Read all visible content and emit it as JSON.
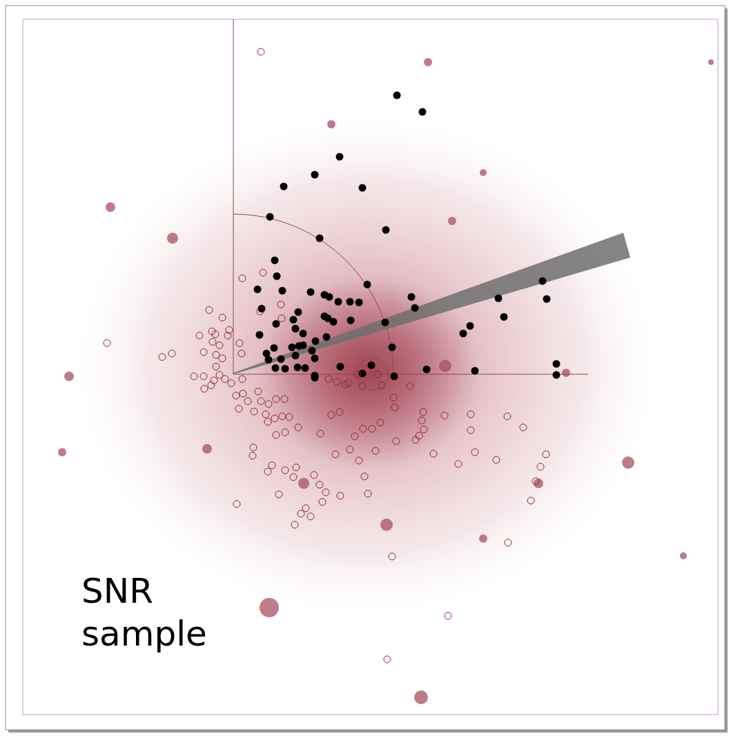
{
  "chart_data": {
    "type": "scatter",
    "title": "SNR sample",
    "xlim": [
      0,
      1059
    ],
    "ylim": [
      0,
      1066
    ],
    "tick_labels": false,
    "grid": false,
    "series": [
      {
        "color": "#000000",
        "marker": "filled",
        "values": [
          [
            575,
            928
          ],
          [
            612,
            904
          ],
          [
            492,
            839
          ],
          [
            456,
            813
          ],
          [
            411,
            796
          ],
          [
            525,
            794
          ],
          [
            391,
            752
          ],
          [
            463,
            721
          ],
          [
            559,
            733
          ],
          [
            398,
            689
          ],
          [
            401,
            666
          ],
          [
            532,
            654
          ],
          [
            373,
            647
          ],
          [
            409,
            645
          ],
          [
            450,
            643
          ],
          [
            470,
            639
          ],
          [
            477,
            636
          ],
          [
            490,
            629
          ],
          [
            507,
            629
          ],
          [
            520,
            628
          ],
          [
            596,
            636
          ],
          [
            601,
            620
          ],
          [
            722,
            634
          ],
          [
            786,
            659
          ],
          [
            792,
            633
          ],
          [
            730,
            607
          ],
          [
            681,
            594
          ],
          [
            671,
            583
          ],
          [
            558,
            599
          ],
          [
            379,
            619
          ],
          [
            400,
            597
          ],
          [
            425,
            603
          ],
          [
            432,
            614
          ],
          [
            428,
            590
          ],
          [
            470,
            608
          ],
          [
            475,
            605
          ],
          [
            483,
            600
          ],
          [
            508,
            602
          ],
          [
            439,
            583
          ],
          [
            457,
            572
          ],
          [
            473,
            578
          ],
          [
            376,
            581
          ],
          [
            397,
            562
          ],
          [
            386,
            554
          ],
          [
            423,
            563
          ],
          [
            433,
            565
          ],
          [
            439,
            566
          ],
          [
            456,
            547
          ],
          [
            407,
            546
          ],
          [
            428,
            551
          ],
          [
            413,
            532
          ],
          [
            442,
            533
          ],
          [
            399,
            533
          ],
          [
            431,
            534
          ],
          [
            456,
            522
          ],
          [
            456,
            519
          ],
          [
            493,
            535
          ],
          [
            568,
            563
          ],
          [
            538,
            537
          ],
          [
            525,
            525
          ],
          [
            571,
            521
          ],
          [
            618,
            531
          ],
          [
            688,
            529
          ],
          [
            806,
            539
          ],
          [
            806,
            523
          ],
          [
            389,
            545
          ],
          [
            452,
            558
          ]
        ]
      },
      {
        "color": "#8b2a2a",
        "marker": "open",
        "values": [
          [
            378,
            991
          ],
          [
            155,
            569
          ],
          [
            235,
            549
          ],
          [
            249,
            554
          ],
          [
            281,
            521
          ],
          [
            295,
            521
          ],
          [
            296,
            503
          ],
          [
            303,
            617
          ],
          [
            289,
            580
          ],
          [
            295,
            556
          ],
          [
            307,
            586
          ],
          [
            308,
            571
          ],
          [
            312,
            582
          ],
          [
            318,
            566
          ],
          [
            313,
            552
          ],
          [
            322,
            547
          ],
          [
            332,
            588
          ],
          [
            322,
            606
          ],
          [
            306,
            508
          ],
          [
            310,
            515
          ],
          [
            318,
            523
          ],
          [
            326,
            517
          ],
          [
            335,
            511
          ],
          [
            313,
            535
          ],
          [
            351,
            663
          ],
          [
            381,
            671
          ],
          [
            407,
            625
          ],
          [
            408,
            605
          ],
          [
            377,
            615
          ],
          [
            330,
            580
          ],
          [
            347,
            569
          ],
          [
            350,
            554
          ],
          [
            351,
            517
          ],
          [
            342,
            493
          ],
          [
            352,
            496
          ],
          [
            359,
            485
          ],
          [
            374,
            499
          ],
          [
            378,
            485
          ],
          [
            389,
            481
          ],
          [
            400,
            488
          ],
          [
            412,
            488
          ],
          [
            368,
            470
          ],
          [
            385,
            466
          ],
          [
            388,
            455
          ],
          [
            398,
            460
          ],
          [
            409,
            463
          ],
          [
            419,
            462
          ],
          [
            432,
            447
          ],
          [
            413,
            440
          ],
          [
            400,
            436
          ],
          [
            346,
            474
          ],
          [
            367,
            418
          ],
          [
            366,
            406
          ],
          [
            394,
            392
          ],
          [
            388,
            383
          ],
          [
            413,
            385
          ],
          [
            429,
            389
          ],
          [
            425,
            375
          ],
          [
            404,
            350
          ],
          [
            343,
            336
          ],
          [
            443,
            330
          ],
          [
            436,
            322
          ],
          [
            450,
            318
          ],
          [
            427,
            306
          ],
          [
            467,
            339
          ],
          [
            472,
            353
          ],
          [
            493,
            348
          ],
          [
            463,
            364
          ],
          [
            455,
            378
          ],
          [
            480,
            465
          ],
          [
            464,
            438
          ],
          [
            486,
            408
          ],
          [
            507,
            415
          ],
          [
            520,
            399
          ],
          [
            544,
            413
          ],
          [
            528,
            376
          ],
          [
            533,
            351
          ],
          [
            514,
            434
          ],
          [
            526,
            445
          ],
          [
            539,
            445
          ],
          [
            551,
            454
          ],
          [
            574,
            427
          ],
          [
            572,
            476
          ],
          [
            570,
            490
          ],
          [
            553,
            508
          ],
          [
            525,
            507
          ],
          [
            488,
            513
          ],
          [
            476,
            517
          ],
          [
            500,
            509
          ],
          [
            505,
            511
          ],
          [
            594,
            507
          ],
          [
            613,
            469
          ],
          [
            611,
            457
          ],
          [
            602,
            429
          ],
          [
            607,
            435
          ],
          [
            614,
            444
          ],
          [
            644,
            464
          ],
          [
            628,
            409
          ],
          [
            664,
            394
          ],
          [
            688,
            411
          ],
          [
            682,
            443
          ],
          [
            682,
            466
          ],
          [
            735,
            463
          ],
          [
            758,
            447
          ],
          [
            719,
            400
          ],
          [
            791,
            408
          ],
          [
            783,
            390
          ],
          [
            776,
            369
          ],
          [
            769,
            341
          ],
          [
            736,
            280
          ],
          [
            568,
            260
          ],
          [
            649,
            174
          ],
          [
            561,
            111
          ],
          [
            518,
            524
          ],
          [
            492,
            469
          ],
          [
            547,
            524
          ]
        ]
      }
    ]
  }
}
